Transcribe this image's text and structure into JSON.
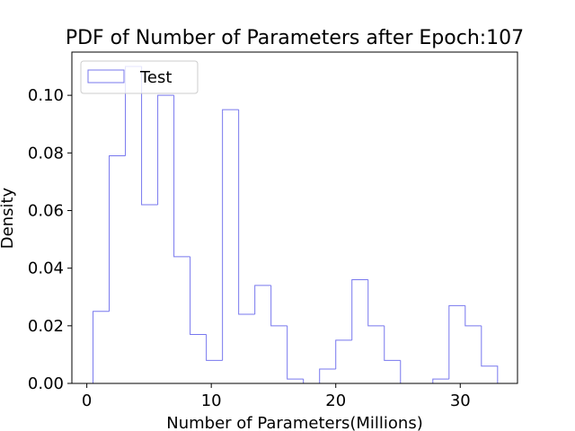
{
  "chart_data": {
    "type": "histogram",
    "title": "PDF of Number of Parameters after Epoch:107",
    "xlabel": "Number of Parameters(Millions)",
    "ylabel": "Density",
    "xlim": [
      -1.2,
      34.6
    ],
    "ylim": [
      0,
      0.115
    ],
    "xticks": [
      0,
      10,
      20,
      30
    ],
    "yticks": [
      0.0,
      0.02,
      0.04,
      0.06,
      0.08,
      0.1
    ],
    "ytick_labels": [
      "0.00",
      "0.02",
      "0.04",
      "0.06",
      "0.08",
      "0.10"
    ],
    "grid": false,
    "legend": {
      "position": "top-left",
      "entries": [
        "Test"
      ]
    },
    "series": [
      {
        "name": "Test",
        "color": "#7777ee",
        "histtype": "step",
        "bin_edges": [
          0.5,
          1.8,
          3.1,
          4.4,
          5.7,
          7.0,
          8.3,
          9.6,
          10.9,
          12.2,
          13.5,
          14.8,
          16.1,
          17.4,
          18.7,
          20.0,
          21.3,
          22.6,
          23.9,
          25.2,
          26.5,
          27.8,
          29.1,
          30.4,
          31.7,
          33.0
        ],
        "densities": [
          0.025,
          0.079,
          0.11,
          0.062,
          0.1,
          0.044,
          0.017,
          0.008,
          0.095,
          0.024,
          0.034,
          0.02,
          0.0015,
          0.0,
          0.005,
          0.015,
          0.036,
          0.02,
          0.008,
          0.0,
          0.0,
          0.0015,
          0.027,
          0.02,
          0.006
        ]
      }
    ]
  }
}
